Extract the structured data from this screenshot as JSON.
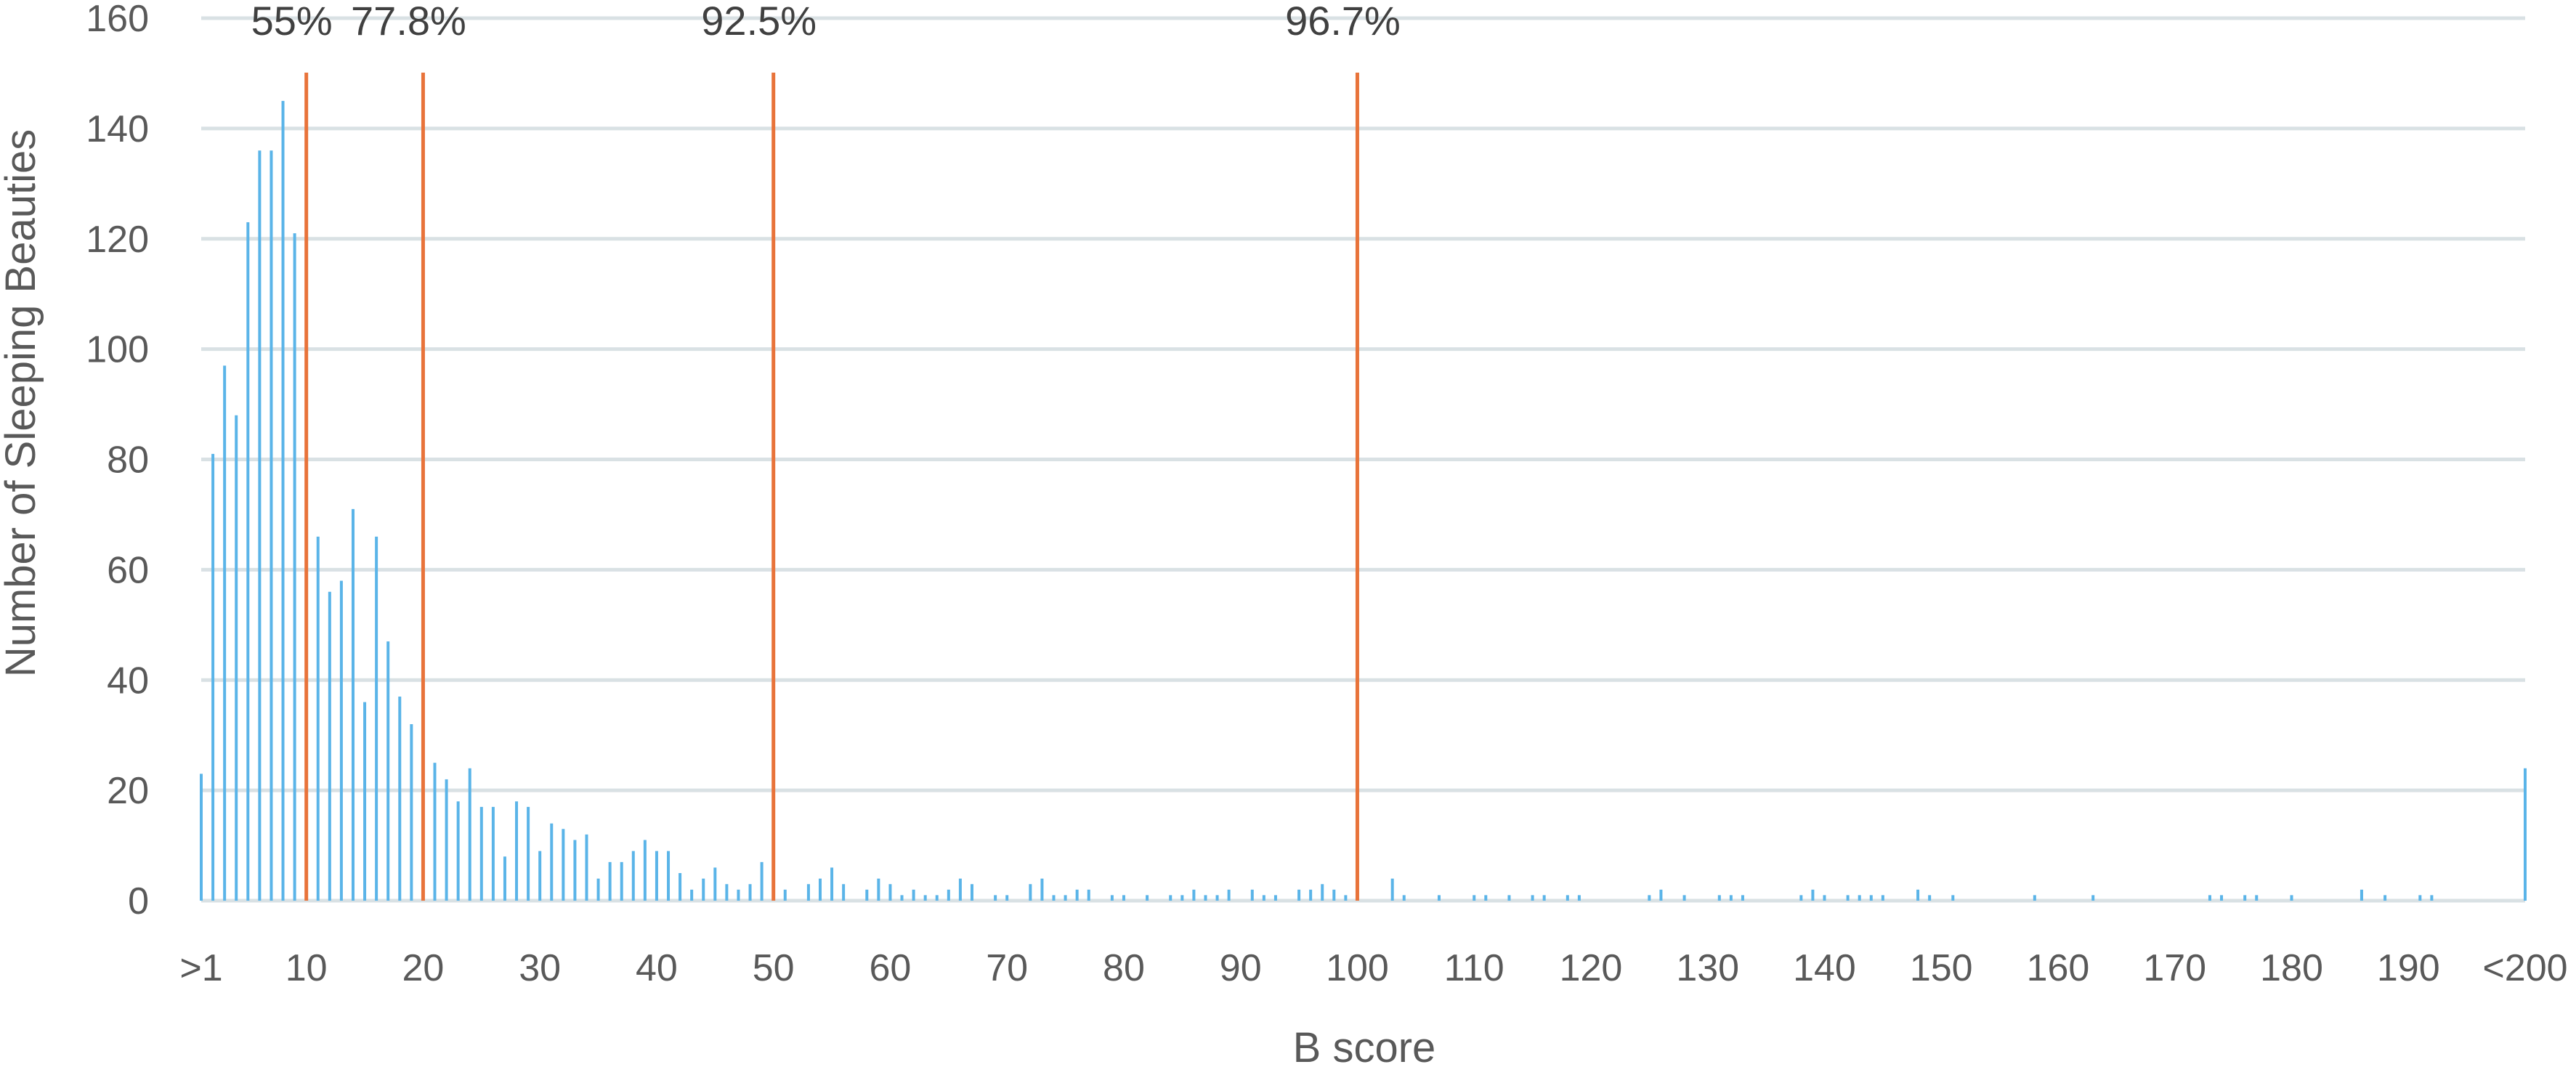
{
  "chart_data": {
    "type": "bar",
    "title": "",
    "xlabel": "B score",
    "ylabel": "Number of Sleeping Beauties",
    "ylim": [
      0,
      160
    ],
    "yticks": [
      0,
      20,
      40,
      60,
      80,
      100,
      120,
      140,
      160
    ],
    "xlim": [
      1,
      200
    ],
    "xtick_labels": [
      {
        "x": 1,
        "label": ">1"
      },
      {
        "x": 10,
        "label": "10"
      },
      {
        "x": 20,
        "label": "20"
      },
      {
        "x": 30,
        "label": "30"
      },
      {
        "x": 40,
        "label": "40"
      },
      {
        "x": 50,
        "label": "50"
      },
      {
        "x": 60,
        "label": "60"
      },
      {
        "x": 70,
        "label": "70"
      },
      {
        "x": 80,
        "label": "80"
      },
      {
        "x": 90,
        "label": "90"
      },
      {
        "x": 100,
        "label": "100"
      },
      {
        "x": 110,
        "label": "110"
      },
      {
        "x": 120,
        "label": "120"
      },
      {
        "x": 130,
        "label": "130"
      },
      {
        "x": 140,
        "label": "140"
      },
      {
        "x": 150,
        "label": "150"
      },
      {
        "x": 160,
        "label": "160"
      },
      {
        "x": 170,
        "label": "170"
      },
      {
        "x": 180,
        "label": "180"
      },
      {
        "x": 190,
        "label": "190"
      },
      {
        "x": 200,
        "label": "<200"
      }
    ],
    "grid": true,
    "legend": "none",
    "bar_color": "#5ab4e8",
    "reference_color": "#e8733a",
    "grid_color": "#d9e1e4",
    "x": [
      1,
      2,
      3,
      4,
      5,
      6,
      7,
      8,
      9,
      10,
      11,
      12,
      13,
      14,
      15,
      16,
      17,
      18,
      19,
      20,
      21,
      22,
      23,
      24,
      25,
      26,
      27,
      28,
      29,
      30,
      31,
      32,
      33,
      34,
      35,
      36,
      37,
      38,
      39,
      40,
      41,
      42,
      43,
      44,
      45,
      46,
      47,
      48,
      49,
      50,
      51,
      53,
      54,
      55,
      56,
      58,
      59,
      60,
      61,
      62,
      63,
      64,
      65,
      66,
      67,
      69,
      70,
      72,
      73,
      74,
      75,
      76,
      77,
      79,
      80,
      82,
      84,
      85,
      86,
      87,
      88,
      89,
      91,
      92,
      93,
      95,
      96,
      97,
      98,
      99,
      100,
      103,
      104,
      107,
      110,
      111,
      113,
      115,
      116,
      118,
      119,
      125,
      126,
      128,
      131,
      132,
      133,
      138,
      139,
      140,
      142,
      143,
      144,
      145,
      148,
      149,
      151,
      158,
      163,
      173,
      174,
      176,
      177,
      180,
      186,
      188,
      191,
      192,
      200
    ],
    "values": [
      23,
      81,
      97,
      88,
      123,
      136,
      136,
      145,
      121,
      74,
      66,
      56,
      58,
      71,
      36,
      66,
      47,
      37,
      32,
      22,
      25,
      22,
      18,
      24,
      17,
      17,
      8,
      18,
      17,
      9,
      14,
      13,
      11,
      12,
      4,
      7,
      7,
      9,
      11,
      9,
      9,
      5,
      2,
      4,
      6,
      3,
      2,
      3,
      7,
      3,
      2,
      3,
      4,
      6,
      3,
      2,
      4,
      3,
      1,
      2,
      1,
      1,
      2,
      4,
      3,
      1,
      1,
      3,
      4,
      1,
      1,
      2,
      2,
      1,
      1,
      1,
      1,
      1,
      2,
      1,
      1,
      2,
      2,
      1,
      1,
      2,
      2,
      3,
      2,
      1,
      1,
      4,
      1,
      1,
      1,
      1,
      1,
      1,
      1,
      1,
      1,
      1,
      2,
      1,
      1,
      1,
      1,
      1,
      2,
      1,
      1,
      1,
      1,
      1,
      2,
      1,
      1,
      1,
      1,
      1,
      1,
      1,
      1,
      1,
      2,
      1,
      1,
      1,
      24
    ],
    "reference_lines": [
      {
        "x": 10,
        "label": "55%"
      },
      {
        "x": 20,
        "label": "77.8%"
      },
      {
        "x": 50,
        "label": "92.5%"
      },
      {
        "x": 100,
        "label": "96.7%"
      }
    ]
  }
}
